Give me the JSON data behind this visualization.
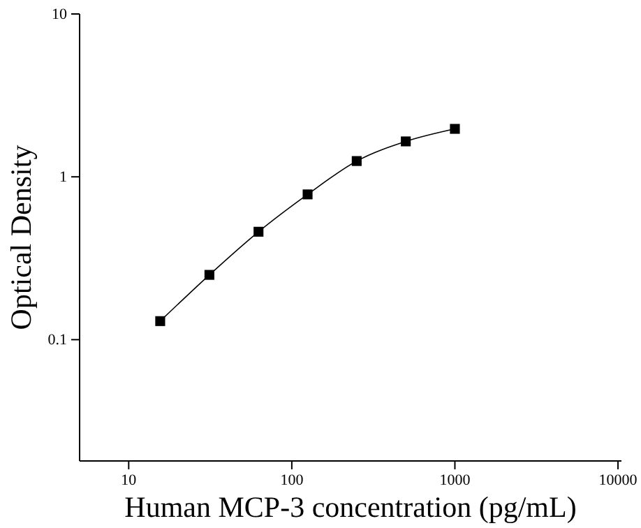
{
  "chart_data": {
    "type": "line",
    "xlabel": "Human MCP-3 concentration (pg/mL)",
    "ylabel": "Optical Density",
    "log": "xy",
    "x": [
      15.6,
      31.25,
      62.5,
      125,
      250,
      500,
      1000
    ],
    "series": [
      {
        "color": "#000000",
        "values": [
          0.13,
          0.25,
          0.46,
          0.78,
          1.25,
          1.65,
          1.97
        ]
      }
    ],
    "marker": "square",
    "line_style": "solid",
    "xlim": [
      5,
      10500
    ],
    "xticks": [
      10,
      100,
      1000,
      10000
    ],
    "ylim": [
      0.018,
      10
    ],
    "yticks": [
      0.1,
      1,
      10
    ]
  }
}
